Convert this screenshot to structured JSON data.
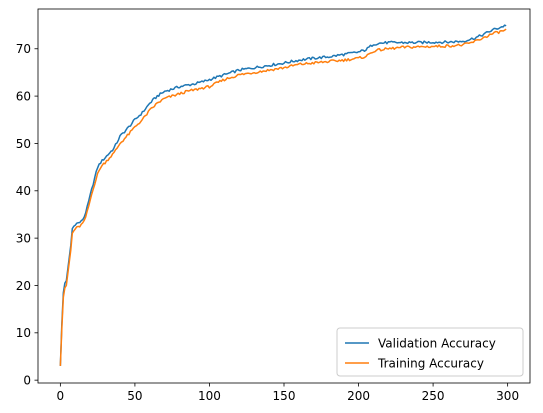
{
  "chart_data": {
    "type": "line",
    "title": "",
    "xlabel": "",
    "ylabel": "",
    "xlim": [
      -15,
      315
    ],
    "ylim": [
      -0.6,
      78.4
    ],
    "x_ticks": [
      0,
      50,
      100,
      150,
      200,
      250,
      300
    ],
    "y_ticks": [
      0,
      10,
      20,
      30,
      40,
      50,
      60,
      70
    ],
    "grid": false,
    "legend_position": "lower-right",
    "anchors_x": [
      0,
      1,
      2,
      3,
      4,
      5,
      6,
      7,
      8,
      10,
      12,
      14,
      16,
      18,
      20,
      22,
      25,
      27,
      30,
      33,
      36,
      40,
      43,
      46,
      50,
      55,
      60,
      65,
      70,
      75,
      80,
      85,
      90,
      95,
      100,
      110,
      120,
      130,
      140,
      150,
      160,
      170,
      180,
      190,
      200,
      205,
      210,
      215,
      220,
      230,
      240,
      250,
      260,
      270,
      275,
      280,
      285,
      290,
      295,
      299
    ],
    "series": [
      {
        "name": "Validation Accuracy",
        "color": "#1f77b4",
        "values": [
          3.0,
          12.0,
          18.5,
          20.5,
          21.0,
          23.5,
          26.0,
          28.5,
          32.0,
          33.0,
          33.2,
          33.5,
          34.5,
          36.5,
          39.0,
          41.5,
          45.0,
          46.0,
          47.0,
          48.0,
          49.0,
          51.5,
          52.5,
          53.5,
          55.0,
          56.5,
          58.5,
          60.0,
          61.0,
          61.5,
          62.0,
          62.3,
          62.6,
          63.0,
          63.5,
          64.5,
          65.5,
          66.0,
          66.5,
          67.0,
          67.6,
          68.0,
          68.3,
          68.8,
          69.3,
          69.8,
          71.0,
          71.2,
          71.3,
          71.3,
          71.3,
          71.4,
          71.4,
          71.6,
          72.0,
          72.5,
          73.2,
          74.0,
          74.5,
          75.0
        ]
      },
      {
        "name": "Training Accuracy",
        "color": "#ff7f0e",
        "values": [
          3.0,
          11.0,
          17.5,
          19.5,
          20.0,
          22.5,
          25.0,
          27.5,
          31.0,
          32.0,
          32.3,
          32.8,
          33.5,
          35.5,
          38.0,
          40.5,
          43.5,
          45.0,
          46.0,
          47.0,
          48.0,
          50.0,
          51.0,
          52.0,
          53.5,
          55.0,
          57.0,
          58.5,
          59.5,
          60.0,
          60.5,
          61.0,
          61.3,
          61.7,
          62.0,
          63.5,
          64.5,
          65.0,
          65.5,
          66.0,
          66.7,
          67.0,
          67.3,
          67.6,
          68.0,
          68.4,
          69.5,
          69.8,
          70.0,
          70.3,
          70.4,
          70.5,
          70.6,
          70.8,
          71.2,
          71.8,
          72.5,
          73.2,
          73.6,
          74.0
        ]
      }
    ]
  }
}
